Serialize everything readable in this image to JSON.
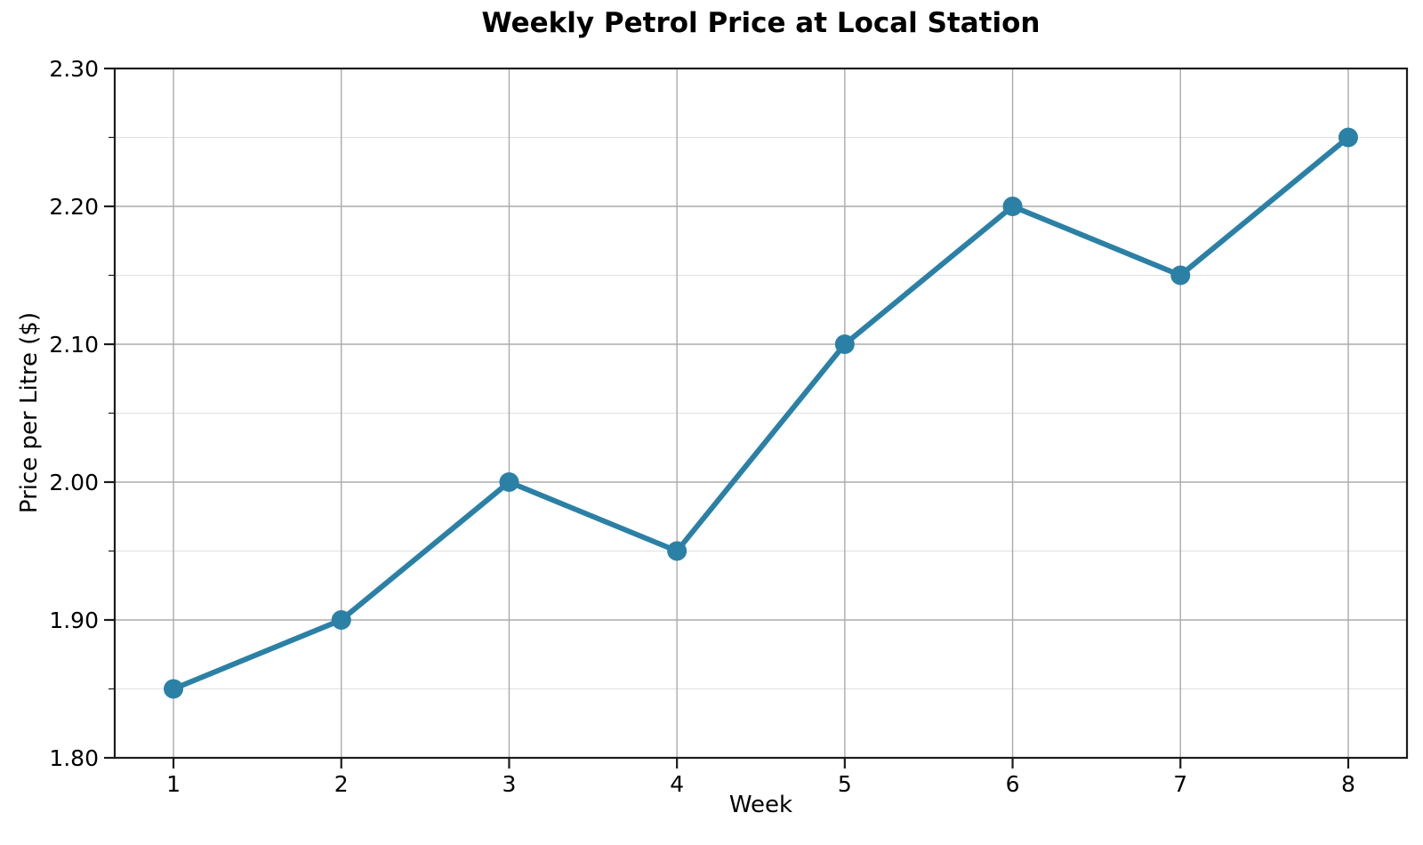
{
  "chart_data": {
    "type": "line",
    "title": "Weekly Petrol Price at Local Station",
    "xlabel": "Week",
    "ylabel": "Price per Litre ($)",
    "x": [
      1,
      2,
      3,
      4,
      5,
      6,
      7,
      8
    ],
    "values": [
      1.85,
      1.9,
      2.0,
      1.95,
      2.1,
      2.2,
      2.15,
      2.25
    ],
    "xlim": [
      0.65,
      8.35
    ],
    "ylim": [
      1.8,
      2.3
    ],
    "xticks": {
      "values": [
        1,
        2,
        3,
        4,
        5,
        6,
        7,
        8
      ],
      "labels": [
        "1",
        "2",
        "3",
        "4",
        "5",
        "6",
        "7",
        "8"
      ]
    },
    "yticks_major": {
      "values": [
        1.8,
        1.9,
        2.0,
        2.1,
        2.2,
        2.3
      ],
      "labels": [
        "1.80",
        "1.90",
        "2.00",
        "2.10",
        "2.20",
        "2.30"
      ]
    },
    "yticks_minor": [
      1.85,
      1.95,
      2.05,
      2.15,
      2.25
    ],
    "grid": "on",
    "legend": "none",
    "colors": {
      "line": "#2B80A6",
      "marker": "#2B80A6",
      "grid_major": "#ababab",
      "grid_minor": "#e0e0e0",
      "spine": "#1c1c1c",
      "text": "#000000",
      "background": "#ffffff"
    }
  }
}
